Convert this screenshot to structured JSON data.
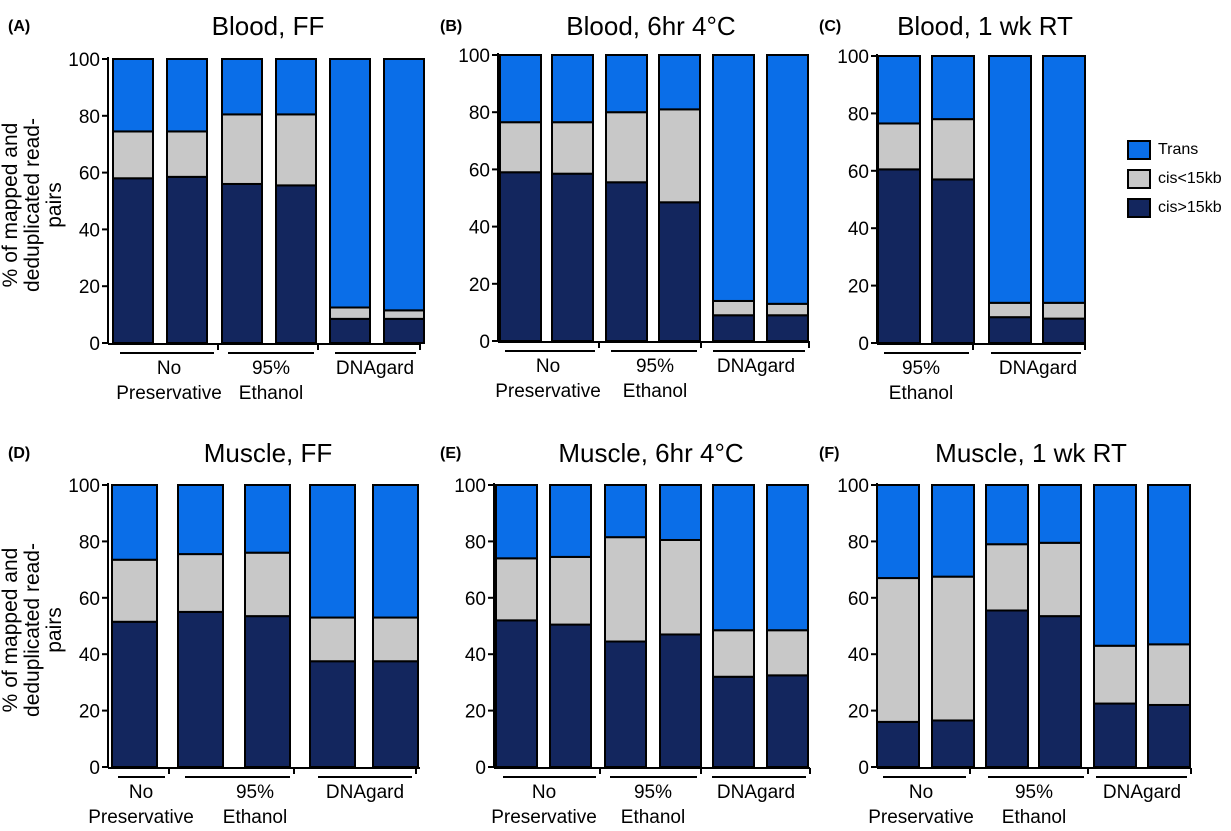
{
  "figure": {
    "ylabel_top": "% of mapped and deduplicated read-pairs",
    "ylabel_bottom": "% of mapped and deduplicated read-pairs",
    "legend": [
      {
        "label": "Trans",
        "color": "#0a6ee8"
      },
      {
        "label": "cis<15kb",
        "color": "#c8c8c8"
      },
      {
        "label": "cis>15kb",
        "color": "#13265e"
      }
    ]
  },
  "chart_data": [
    {
      "type": "bar",
      "stacked": true,
      "panel": "(A)",
      "title": "Blood, FF",
      "ylim": [
        0,
        100
      ],
      "yticks": [
        "0",
        "20",
        "40",
        "60",
        "80",
        "100"
      ],
      "groups": [
        {
          "label_lines": [
            "No",
            "Preservative"
          ],
          "bars": 2
        },
        {
          "label_lines": [
            "95%",
            "Ethanol"
          ],
          "bars": 2
        },
        {
          "label_lines": [
            "DNAgard"
          ],
          "bars": 2
        }
      ],
      "series": [
        {
          "name": "cis>15kb",
          "values": [
            58,
            58.5,
            56,
            55.5,
            8.5,
            8.5
          ]
        },
        {
          "name": "cis<15kb",
          "values": [
            16.5,
            16,
            24.5,
            25,
            4,
            3
          ]
        },
        {
          "name": "Trans",
          "values": [
            25.5,
            25.5,
            19.5,
            19.5,
            87.5,
            88.5
          ]
        }
      ]
    },
    {
      "type": "bar",
      "stacked": true,
      "panel": "(B)",
      "title": "Blood, 6hr 4°C",
      "ylim": [
        0,
        100
      ],
      "yticks": [
        "0",
        "20",
        "40",
        "60",
        "80",
        "100"
      ],
      "groups": [
        {
          "label_lines": [
            "No",
            "Preservative"
          ],
          "bars": 2
        },
        {
          "label_lines": [
            "95%",
            "Ethanol"
          ],
          "bars": 2
        },
        {
          "label_lines": [
            "DNAgard"
          ],
          "bars": 2
        }
      ],
      "series": [
        {
          "name": "cis>15kb",
          "values": [
            59,
            58.5,
            55.5,
            48.5,
            9,
            9
          ]
        },
        {
          "name": "cis<15kb",
          "values": [
            17.5,
            18,
            24.5,
            32.5,
            5,
            4
          ]
        },
        {
          "name": "Trans",
          "values": [
            23.5,
            23.5,
            20,
            19,
            86,
            87
          ]
        }
      ]
    },
    {
      "type": "bar",
      "stacked": true,
      "panel": "(C)",
      "title": "Blood, 1 wk RT",
      "ylim": [
        0,
        100
      ],
      "yticks": [
        "0",
        "20",
        "40",
        "60",
        "80",
        "100"
      ],
      "groups": [
        {
          "label_lines": [
            "95%",
            "Ethanol"
          ],
          "bars": 2
        },
        {
          "label_lines": [
            "DNAgard"
          ],
          "bars": 2
        }
      ],
      "series": [
        {
          "name": "cis>15kb",
          "values": [
            60.5,
            57,
            9,
            8.5
          ]
        },
        {
          "name": "cis<15kb",
          "values": [
            16,
            21,
            5,
            5.5
          ]
        },
        {
          "name": "Trans",
          "values": [
            23.5,
            22,
            86,
            86
          ]
        }
      ]
    },
    {
      "type": "bar",
      "stacked": true,
      "panel": "(D)",
      "title": "Muscle, FF",
      "ylim": [
        0,
        100
      ],
      "yticks": [
        "0",
        "20",
        "40",
        "60",
        "80",
        "100"
      ],
      "groups": [
        {
          "label_lines": [
            "No",
            "Preservative"
          ],
          "bars": 1
        },
        {
          "label_lines": [
            "95%",
            "Ethanol"
          ],
          "bars": 2
        },
        {
          "label_lines": [
            "DNAgard"
          ],
          "bars": 2
        }
      ],
      "series": [
        {
          "name": "cis>15kb",
          "values": [
            51.5,
            55,
            53.5,
            37.5,
            37.5
          ]
        },
        {
          "name": "cis<15kb",
          "values": [
            22,
            20.5,
            22.5,
            15.5,
            15.5
          ]
        },
        {
          "name": "Trans",
          "values": [
            26.5,
            24.5,
            24,
            47,
            47
          ]
        }
      ]
    },
    {
      "type": "bar",
      "stacked": true,
      "panel": "(E)",
      "title": "Muscle, 6hr 4°C",
      "ylim": [
        0,
        100
      ],
      "yticks": [
        "0",
        "20",
        "40",
        "60",
        "80",
        "100"
      ],
      "groups": [
        {
          "label_lines": [
            "No",
            "Preservative"
          ],
          "bars": 2
        },
        {
          "label_lines": [
            "95%",
            "Ethanol"
          ],
          "bars": 2
        },
        {
          "label_lines": [
            "DNAgard"
          ],
          "bars": 2
        }
      ],
      "series": [
        {
          "name": "cis>15kb",
          "values": [
            52,
            50.5,
            44.5,
            47,
            32,
            32.5
          ]
        },
        {
          "name": "cis<15kb",
          "values": [
            22,
            24,
            37,
            33.5,
            16.5,
            16
          ]
        },
        {
          "name": "Trans",
          "values": [
            26,
            25.5,
            18.5,
            19.5,
            51.5,
            51.5
          ]
        }
      ]
    },
    {
      "type": "bar",
      "stacked": true,
      "panel": "(F)",
      "title": "Muscle, 1 wk RT",
      "ylim": [
        0,
        100
      ],
      "yticks": [
        "0",
        "20",
        "40",
        "60",
        "80",
        "100"
      ],
      "groups": [
        {
          "label_lines": [
            "No",
            "Preservative"
          ],
          "bars": 2
        },
        {
          "label_lines": [
            "95%",
            "Ethanol"
          ],
          "bars": 2
        },
        {
          "label_lines": [
            "DNAgard"
          ],
          "bars": 2
        }
      ],
      "series": [
        {
          "name": "cis>15kb",
          "values": [
            16,
            16.5,
            55.5,
            53.5,
            22.5,
            22
          ]
        },
        {
          "name": "cis<15kb",
          "values": [
            51,
            51,
            23.5,
            26,
            20.5,
            21.5
          ]
        },
        {
          "name": "Trans",
          "values": [
            33,
            32.5,
            21,
            20.5,
            57,
            56.5
          ]
        }
      ]
    }
  ]
}
